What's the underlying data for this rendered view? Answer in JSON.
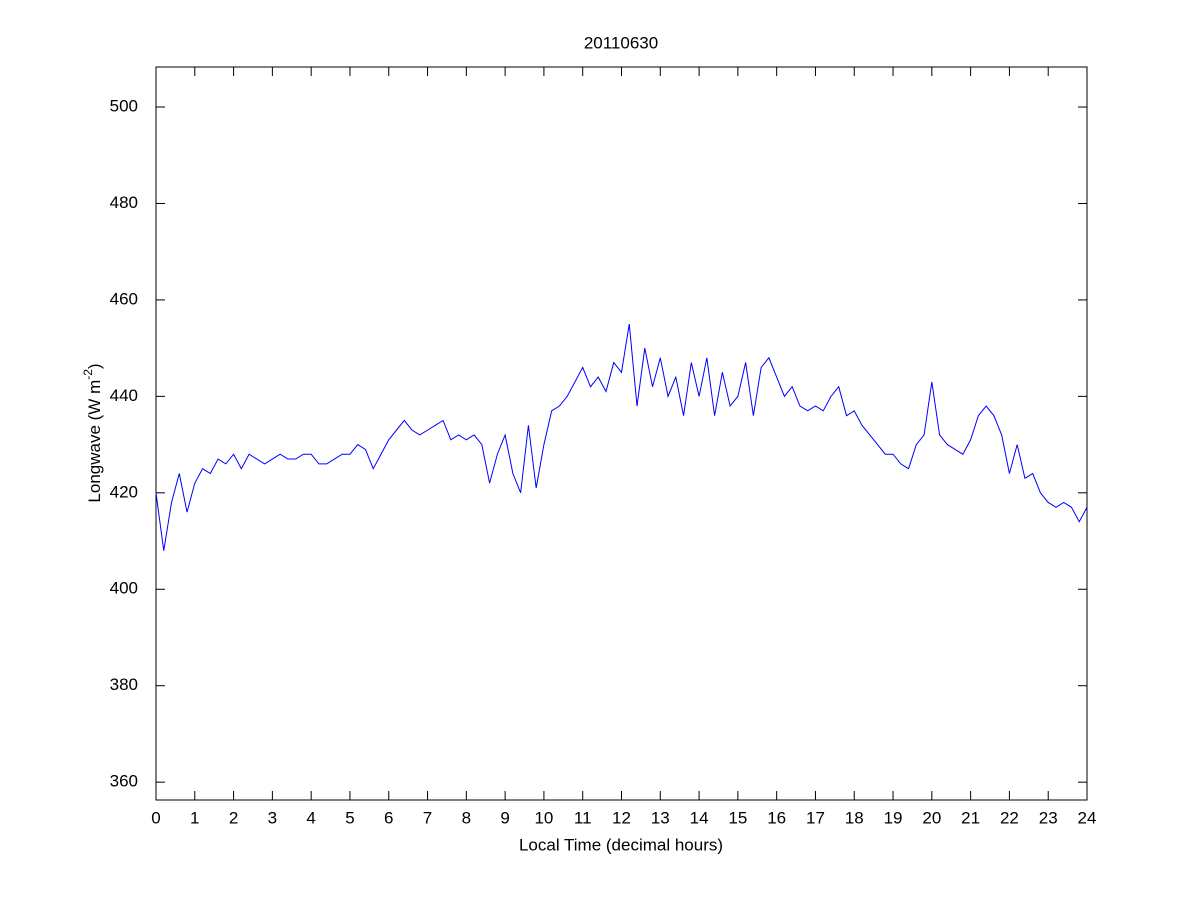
{
  "chart_data": {
    "type": "line",
    "title": "20110630",
    "xlabel": "Local Time (decimal hours)",
    "ylabel": "Longwave (W m",
    "ylabel_superscript": "-2",
    "ylabel_end": ")",
    "x": [
      0,
      0.2,
      0.4,
      0.6,
      0.8,
      1,
      1.2,
      1.4,
      1.6,
      1.8,
      2,
      2.2,
      2.4,
      2.6,
      2.8,
      3,
      3.2,
      3.4,
      3.6,
      3.8,
      4,
      4.2,
      4.4,
      4.6,
      4.8,
      5,
      5.2,
      5.4,
      5.6,
      5.8,
      6,
      6.2,
      6.4,
      6.6,
      6.8,
      7,
      7.2,
      7.4,
      7.6,
      7.8,
      8,
      8.2,
      8.4,
      8.6,
      8.8,
      9,
      9.2,
      9.4,
      9.6,
      9.8,
      10,
      10.2,
      10.4,
      10.6,
      10.8,
      11,
      11.2,
      11.4,
      11.6,
      11.8,
      12,
      12.2,
      12.4,
      12.6,
      12.8,
      13,
      13.2,
      13.4,
      13.6,
      13.8,
      14,
      14.2,
      14.4,
      14.6,
      14.8,
      15,
      15.2,
      15.4,
      15.6,
      15.8,
      16,
      16.2,
      16.4,
      16.6,
      16.8,
      17,
      17.2,
      17.4,
      17.6,
      17.8,
      18,
      18.2,
      18.4,
      18.6,
      18.8,
      19,
      19.2,
      19.4,
      19.6,
      19.8,
      20,
      20.2,
      20.4,
      20.6,
      20.8,
      21,
      21.2,
      21.4,
      21.6,
      21.8,
      22,
      22.2,
      22.4,
      22.6,
      22.8,
      23,
      23.2,
      23.4,
      23.6,
      23.8,
      24
    ],
    "series": [
      {
        "name": "Longwave",
        "color": "#0000ff",
        "values": [
          420,
          408,
          418,
          424,
          416,
          422,
          425,
          424,
          427,
          426,
          428,
          425,
          428,
          427,
          426,
          427,
          428,
          427,
          427,
          428,
          428,
          426,
          426,
          427,
          428,
          428,
          430,
          429,
          425,
          428,
          431,
          433,
          435,
          433,
          432,
          433,
          434,
          435,
          431,
          432,
          431,
          432,
          430,
          422,
          428,
          432,
          424,
          420,
          434,
          421,
          430,
          437,
          438,
          440,
          443,
          446,
          442,
          444,
          441,
          447,
          445,
          455,
          438,
          450,
          442,
          448,
          440,
          444,
          436,
          447,
          440,
          448,
          436,
          445,
          438,
          440,
          447,
          436,
          446,
          448,
          444,
          440,
          442,
          438,
          437,
          438,
          437,
          440,
          442,
          436,
          437,
          434,
          432,
          430,
          428,
          428,
          426,
          425,
          430,
          432,
          443,
          432,
          430,
          429,
          428,
          431,
          436,
          438,
          436,
          432,
          424,
          430,
          423,
          424,
          420,
          418,
          417,
          418,
          417,
          414,
          417
        ]
      }
    ],
    "xlim": [
      0,
      24
    ],
    "xticks": [
      0,
      1,
      2,
      3,
      4,
      5,
      6,
      7,
      8,
      9,
      10,
      11,
      12,
      13,
      14,
      15,
      16,
      17,
      18,
      19,
      20,
      21,
      22,
      23,
      24
    ],
    "ylim": [
      356.3,
      508.3
    ],
    "yticks": [
      360,
      380,
      400,
      420,
      440,
      460,
      480,
      500
    ]
  }
}
